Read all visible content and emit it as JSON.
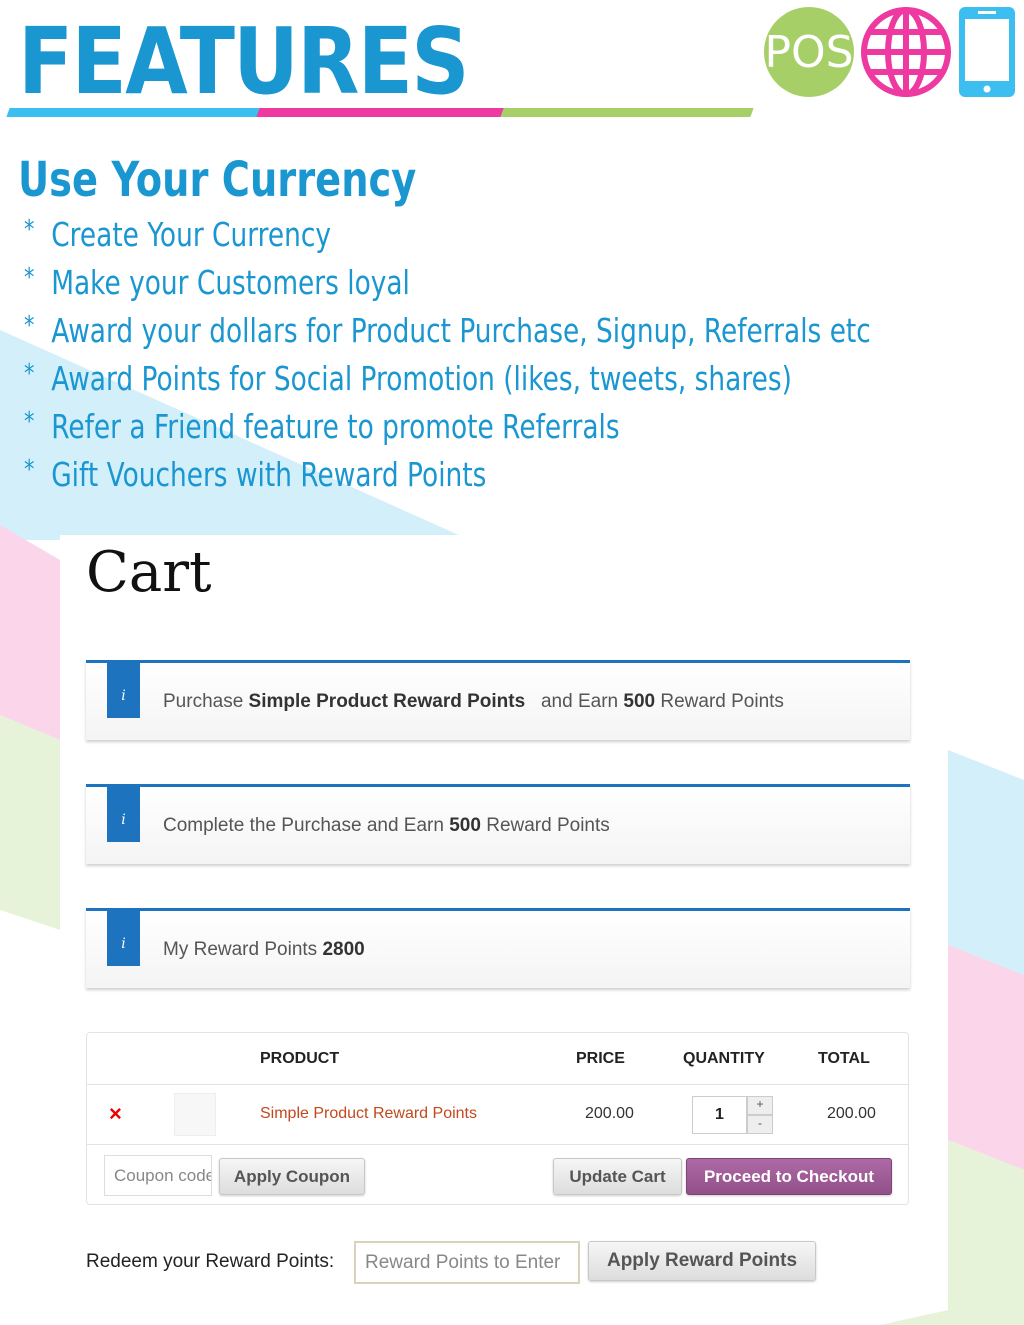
{
  "header": {
    "title": "FEATURES",
    "pos_label": "POS",
    "colors": {
      "blue": "#1a96d0",
      "pink": "#ee3aa0",
      "green": "#a6cf68",
      "cyan": "#3cbff0"
    },
    "icons": [
      "pos-icon",
      "globe-icon",
      "mobile-phone-icon"
    ]
  },
  "section": {
    "heading": "Use Your Currency",
    "bullet": "*",
    "features": [
      "Create Your Currency",
      "Make your Customers loyal",
      "Award your dollars for Product Purchase, Signup, Referrals etc",
      "Award Points for Social Promotion (likes, tweets, shares)",
      "Refer a Friend feature to promote Referrals",
      "Gift Vouchers with Reward Points"
    ]
  },
  "cart": {
    "title": "Cart",
    "info_icon": "i",
    "messages": [
      {
        "pre": "Purchase ",
        "bold": "Simple Product Reward Points",
        "mid": "   and Earn ",
        "num": "500",
        "post": " Reward Points"
      },
      {
        "pre": "Complete the Purchase and Earn ",
        "num": "500",
        "post": " Reward Points"
      },
      {
        "pre": "My Reward Points ",
        "num": "2800"
      }
    ],
    "columns": [
      "PRODUCT",
      "PRICE",
      "QUANTITY",
      "TOTAL"
    ],
    "item": {
      "remove": "×",
      "name": "Simple Product Reward Points",
      "price": "200.00",
      "quantity": "1",
      "total": "200.00",
      "plus": "+",
      "minus": "-"
    },
    "coupon_placeholder": "Coupon code",
    "apply_coupon": "Apply Coupon",
    "update_cart": "Update Cart",
    "checkout": "Proceed to Checkout",
    "redeem_label": "Redeem your Reward Points:",
    "redeem_placeholder": "Reward Points to Enter",
    "apply_points": "Apply Reward Points"
  }
}
